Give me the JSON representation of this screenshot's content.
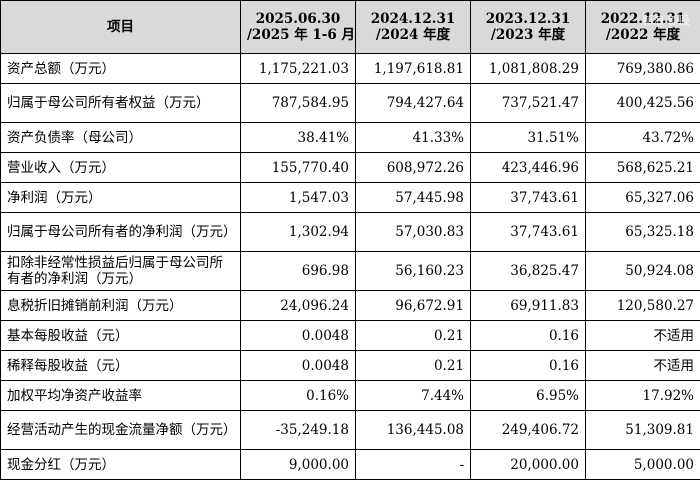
{
  "table": {
    "header": {
      "item": "项目",
      "cols": [
        {
          "l1": "2025.06.30",
          "l2": "/2025 年 1-6 月"
        },
        {
          "l1": "2024.12.31",
          "l2": "/2024 年度"
        },
        {
          "l1": "2023.12.31",
          "l2": "/2023 年度"
        },
        {
          "l1": "2022.12.31",
          "l2": "/2022 年度"
        }
      ]
    },
    "rows": [
      {
        "label": "资产总额（万元）",
        "v": [
          "1,175,221.03",
          "1,197,618.81",
          "1,081,808.29",
          "769,380.86"
        ]
      },
      {
        "label": "归属于母公司所有者权益（万元）",
        "v": [
          "787,584.95",
          "794,427.64",
          "737,521.47",
          "400,425.56"
        ]
      },
      {
        "label": "资产负债率（母公司）",
        "v": [
          "38.41%",
          "41.33%",
          "31.51%",
          "43.72%"
        ]
      },
      {
        "label": "营业收入（万元）",
        "v": [
          "155,770.40",
          "608,972.26",
          "423,446.96",
          "568,625.21"
        ]
      },
      {
        "label": "净利润（万元）",
        "v": [
          "1,547.03",
          "57,445.98",
          "37,743.61",
          "65,327.06"
        ]
      },
      {
        "label": "归属于母公司所有者的净利润（万元）",
        "v": [
          "1,302.94",
          "57,030.83",
          "37,743.61",
          "65,325.18"
        ]
      },
      {
        "label": "扣除非经常性损益后归属于母公司所有者的净利润（万元）",
        "v": [
          "696.98",
          "56,160.23",
          "36,825.47",
          "50,924.08"
        ]
      },
      {
        "label": "息税折旧摊销前利润（万元）",
        "v": [
          "24,096.24",
          "96,672.91",
          "69,911.83",
          "120,580.27"
        ]
      },
      {
        "label": "基本每股收益（元）",
        "v": [
          "0.0048",
          "0.21",
          "0.16",
          "不适用"
        ]
      },
      {
        "label": "稀释每股收益（元）",
        "v": [
          "0.0048",
          "0.21",
          "0.16",
          "不适用"
        ]
      },
      {
        "label": "加权平均净资产收益率",
        "v": [
          "0.16%",
          "7.44%",
          "6.95%",
          "17.92%"
        ]
      },
      {
        "label": "经营活动产生的现金流量净额（万元）",
        "v": [
          "-35,249.18",
          "136,445.08",
          "249,406.72",
          "51,309.81"
        ]
      },
      {
        "label": "现金分红（万元）",
        "v": [
          "9,000.00",
          "-",
          "20,000.00",
          "5,000.00"
        ]
      }
    ]
  },
  "watermark": "新浪 新股"
}
